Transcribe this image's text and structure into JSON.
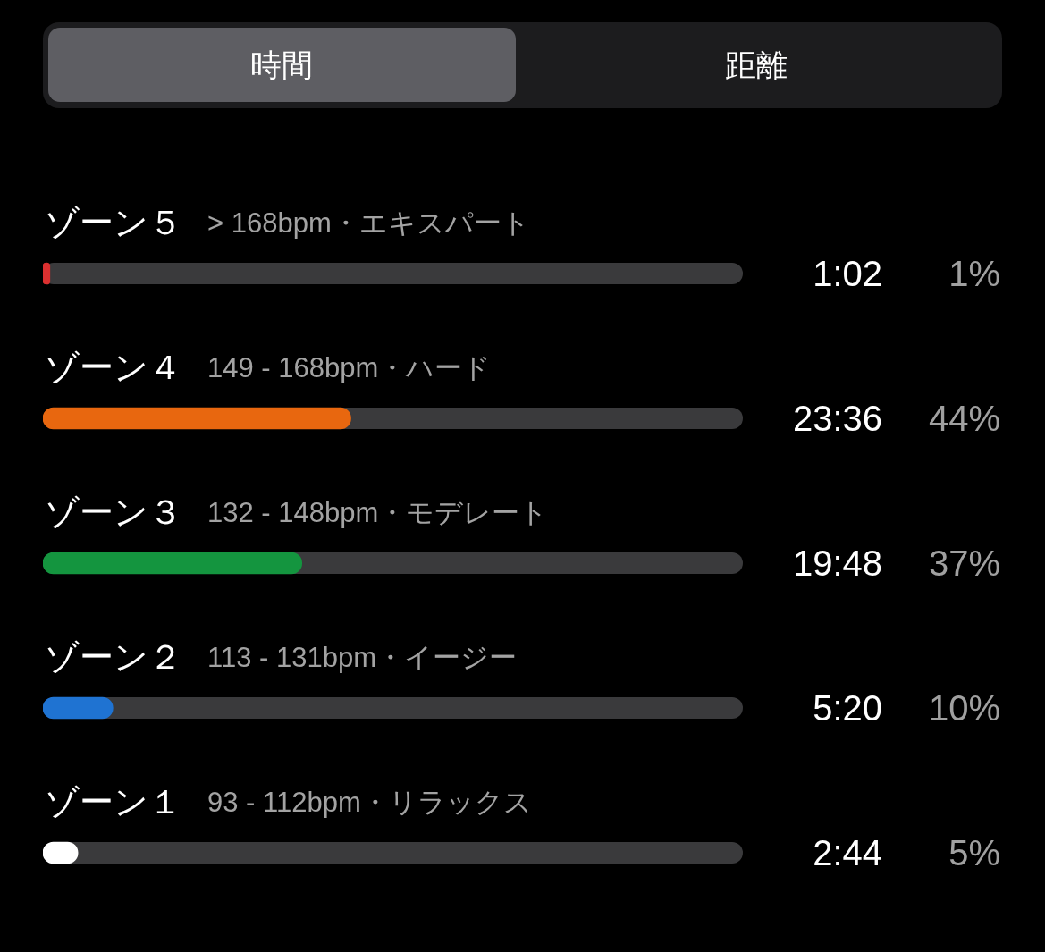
{
  "chart_data": {
    "type": "bar",
    "orientation": "horizontal",
    "categories": [
      "ゾーン５",
      "ゾーン４",
      "ゾーン３",
      "ゾーン２",
      "ゾーン１"
    ],
    "values": [
      1,
      44,
      37,
      10,
      5
    ],
    "colors": [
      "#dc3030",
      "#e8670f",
      "#14953f",
      "#1f73d2",
      "#ffffff"
    ],
    "value_labels": [
      "1%",
      "44%",
      "37%",
      "10%",
      "5%"
    ],
    "xlim": [
      0,
      100
    ],
    "tick_labels": "y",
    "annotations": [
      "時間",
      "距離",
      "> 168bpm・エキスパート",
      "149 - 168bpm・ハード",
      "132 - 148bpm・モデレート",
      "113 - 131bpm・イージー",
      "93 - 112bpm・リラックス",
      "1:02",
      "23:36",
      "19:48",
      "5:20",
      "2:44"
    ]
  }
}
